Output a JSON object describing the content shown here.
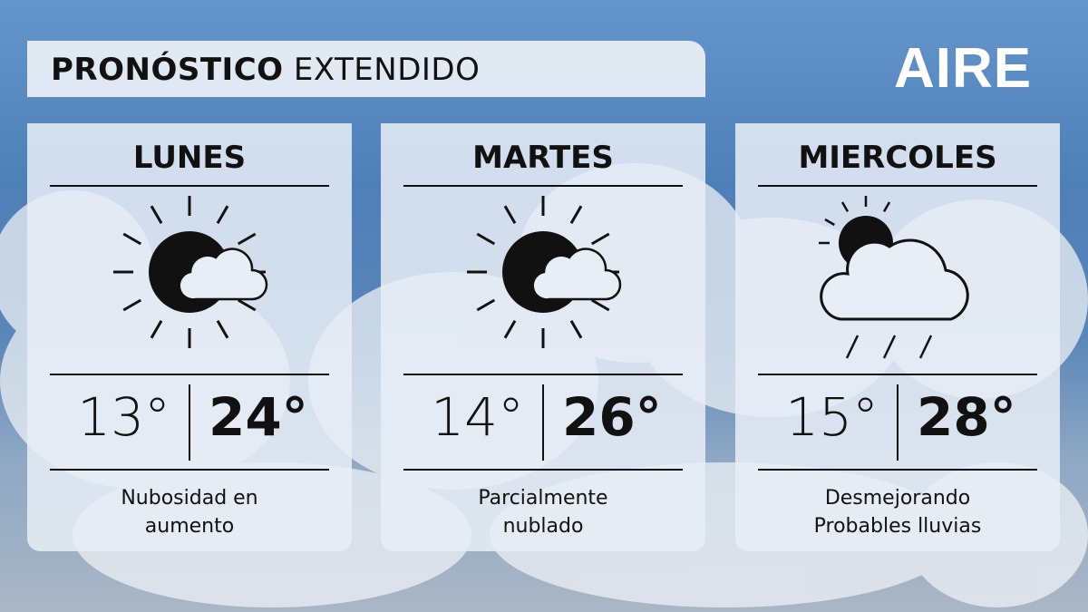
{
  "header": {
    "title_bold": "PRONÓSTICO",
    "title_light": "EXTENDIDO"
  },
  "logo": "AIRE",
  "days": [
    {
      "name": "LUNES",
      "icon": "partly-cloudy-icon",
      "min": "13°",
      "max": "24°",
      "desc_line1": "Nubosidad en",
      "desc_line2": "aumento"
    },
    {
      "name": "MARTES",
      "icon": "partly-cloudy-icon",
      "min": "14°",
      "max": "26°",
      "desc_line1": "Parcialmente",
      "desc_line2": "nublado"
    },
    {
      "name": "MIERCOLES",
      "icon": "rain-cloud-sun-icon",
      "min": "15°",
      "max": "28°",
      "desc_line1": "Desmejorando",
      "desc_line2": "Probables lluvias"
    }
  ]
}
